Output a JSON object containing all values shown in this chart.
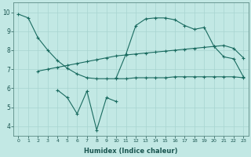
{
  "bg_color": "#c2e8e4",
  "grid_color": "#a8d4d0",
  "line_color": "#1a6b60",
  "xlabel": "Humidex (Indice chaleur)",
  "xlim": [
    -0.5,
    23.5
  ],
  "ylim": [
    3.5,
    10.5
  ],
  "xticks": [
    0,
    1,
    2,
    3,
    4,
    5,
    6,
    7,
    8,
    9,
    10,
    11,
    12,
    13,
    14,
    15,
    16,
    17,
    18,
    19,
    20,
    21,
    22,
    23
  ],
  "yticks": [
    4,
    5,
    6,
    7,
    8,
    9,
    10
  ],
  "lines": [
    {
      "x": [
        0,
        1,
        2,
        3,
        4,
        5,
        6,
        7,
        8,
        9,
        10,
        11,
        12,
        13,
        14,
        15,
        16,
        17,
        18,
        19,
        20,
        21,
        22,
        23
      ],
      "y": [
        9.9,
        9.7,
        8.65,
        8.0,
        7.45,
        7.05,
        6.75,
        6.55,
        6.5,
        6.5,
        6.5,
        6.5,
        6.55,
        6.55,
        6.55,
        6.55,
        6.6,
        6.6,
        6.6,
        6.6,
        6.6,
        6.6,
        6.6,
        6.55
      ]
    },
    {
      "x": [
        2,
        3,
        4,
        5,
        6,
        7,
        8,
        9,
        10,
        11,
        12,
        13,
        14,
        15,
        16,
        17,
        18,
        19,
        20,
        21,
        22,
        23
      ],
      "y": [
        6.9,
        7.0,
        7.1,
        7.2,
        7.3,
        7.4,
        7.5,
        7.6,
        7.7,
        7.75,
        7.8,
        7.85,
        7.9,
        7.95,
        8.0,
        8.05,
        8.1,
        8.15,
        8.2,
        8.25,
        8.1,
        7.6
      ]
    },
    {
      "x": [
        10,
        11,
        12,
        13,
        14,
        15,
        16,
        17,
        18,
        19,
        20,
        21,
        22,
        23
      ],
      "y": [
        6.55,
        7.8,
        9.3,
        9.65,
        9.7,
        9.7,
        9.6,
        9.3,
        9.1,
        9.2,
        8.2,
        7.65,
        7.55,
        6.6
      ]
    },
    {
      "x": [
        4,
        5,
        6,
        7,
        8,
        9,
        10
      ],
      "y": [
        5.9,
        5.5,
        4.65,
        5.85,
        3.8,
        5.5,
        5.3
      ]
    }
  ]
}
